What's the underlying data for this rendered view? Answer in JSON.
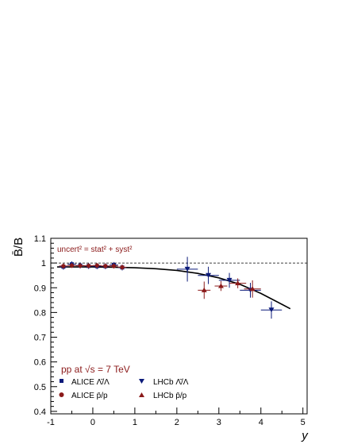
{
  "chart_data": {
    "type": "scatter",
    "xlabel": "y",
    "ylabel": "B̄/B",
    "xlim": [
      -1,
      5.1
    ],
    "ylim": [
      0.39,
      1.1
    ],
    "xticks": [
      "-1",
      "0",
      "1",
      "2",
      "3",
      "4",
      "5"
    ],
    "yticks": [
      "0.4",
      "0.5",
      "0.6",
      "0.7",
      "0.8",
      "0.9",
      "1",
      "1.1"
    ],
    "reference_line": {
      "y": 1,
      "style": "dashed"
    },
    "annotations": {
      "uncert": "uncert² = stat² + syst²",
      "system": "pp at √s = 7 TeV"
    },
    "legend": [
      {
        "label": "ALICE Λ̄/Λ",
        "marker": "square",
        "color": "#0b1a7a"
      },
      {
        "label": "LHCb Λ̄/Λ",
        "marker": "triangle-down",
        "color": "#0b1a7a"
      },
      {
        "label": "ALICE p̄/p",
        "marker": "circle",
        "color": "#8b1a1a"
      },
      {
        "label": "LHCb p̄/p",
        "marker": "triangle-up",
        "color": "#8b1a1a"
      }
    ],
    "series": [
      {
        "name": "ALICE Λ̄/Λ",
        "marker": "square",
        "color": "#0b1a7a",
        "points": [
          {
            "x": -0.7,
            "y": 0.985,
            "xerr": 0.1,
            "yerr": 0.012
          },
          {
            "x": -0.5,
            "y": 0.995,
            "xerr": 0.1,
            "yerr": 0.012
          },
          {
            "x": -0.3,
            "y": 0.99,
            "xerr": 0.1,
            "yerr": 0.012
          },
          {
            "x": -0.1,
            "y": 0.988,
            "xerr": 0.1,
            "yerr": 0.012
          },
          {
            "x": 0.1,
            "y": 0.987,
            "xerr": 0.1,
            "yerr": 0.012
          },
          {
            "x": 0.3,
            "y": 0.987,
            "xerr": 0.1,
            "yerr": 0.012
          },
          {
            "x": 0.5,
            "y": 0.992,
            "xerr": 0.1,
            "yerr": 0.012
          },
          {
            "x": 0.7,
            "y": 0.982,
            "xerr": 0.1,
            "yerr": 0.012
          }
        ]
      },
      {
        "name": "ALICE p̄/p",
        "marker": "circle",
        "color": "#8b1a1a",
        "points": [
          {
            "x": -0.7,
            "y": 0.988,
            "xerr": 0.1,
            "yerr": 0.01
          },
          {
            "x": -0.5,
            "y": 0.99,
            "xerr": 0.1,
            "yerr": 0.01
          },
          {
            "x": -0.3,
            "y": 0.989,
            "xerr": 0.1,
            "yerr": 0.01
          },
          {
            "x": -0.1,
            "y": 0.989,
            "xerr": 0.1,
            "yerr": 0.01
          },
          {
            "x": 0.1,
            "y": 0.99,
            "xerr": 0.1,
            "yerr": 0.01
          },
          {
            "x": 0.3,
            "y": 0.988,
            "xerr": 0.1,
            "yerr": 0.01
          },
          {
            "x": 0.5,
            "y": 0.988,
            "xerr": 0.1,
            "yerr": 0.01
          },
          {
            "x": 0.7,
            "y": 0.983,
            "xerr": 0.1,
            "yerr": 0.01
          }
        ]
      },
      {
        "name": "LHCb Λ̄/Λ",
        "marker": "triangle-down",
        "color": "#0b1a7a",
        "points": [
          {
            "x": 2.25,
            "y": 0.975,
            "xerr": 0.25,
            "yerr": 0.05
          },
          {
            "x": 2.75,
            "y": 0.95,
            "xerr": 0.25,
            "yerr": 0.035
          },
          {
            "x": 3.25,
            "y": 0.93,
            "xerr": 0.25,
            "yerr": 0.03
          },
          {
            "x": 3.75,
            "y": 0.89,
            "xerr": 0.25,
            "yerr": 0.03
          },
          {
            "x": 4.25,
            "y": 0.81,
            "xerr": 0.25,
            "yerr": 0.035
          }
        ]
      },
      {
        "name": "LHCb p̄/p",
        "marker": "triangle-up",
        "color": "#8b1a1a",
        "points": [
          {
            "x": 2.65,
            "y": 0.89,
            "xerr": 0.15,
            "yerr": 0.035
          },
          {
            "x": 3.05,
            "y": 0.907,
            "xerr": 0.15,
            "yerr": 0.02
          },
          {
            "x": 3.45,
            "y": 0.918,
            "xerr": 0.2,
            "yerr": 0.02
          },
          {
            "x": 3.8,
            "y": 0.895,
            "xerr": 0.2,
            "yerr": 0.035
          }
        ]
      }
    ],
    "curve": {
      "color": "#000000",
      "x": [
        -0.85,
        -0.5,
        0.0,
        0.5,
        1.0,
        1.5,
        2.0,
        2.5,
        3.0,
        3.5,
        4.0,
        4.25,
        4.5,
        4.7
      ],
      "y": [
        0.984,
        0.984,
        0.984,
        0.983,
        0.981,
        0.977,
        0.97,
        0.958,
        0.94,
        0.914,
        0.877,
        0.855,
        0.833,
        0.815
      ]
    }
  }
}
